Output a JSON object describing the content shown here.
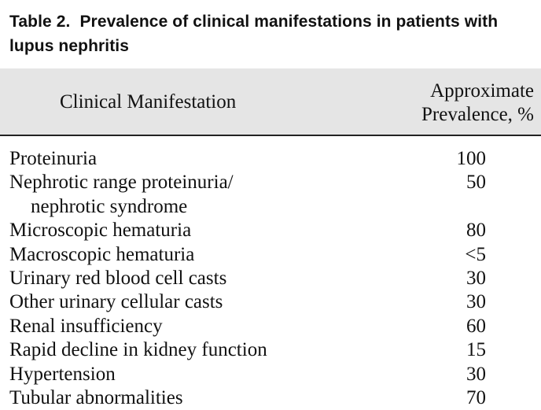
{
  "table": {
    "label": "Table 2.",
    "title": "Prevalence of clinical manifestations in patients with lupus nephritis",
    "col_left": "Clinical Manifestation",
    "col_right_line1": "Approximate",
    "col_right_line2": "Prevalence, %",
    "rows": [
      {
        "name": "Proteinuria",
        "value": "100"
      },
      {
        "name": "Nephrotic range proteinuria/",
        "name_cont": "nephrotic syndrome",
        "value": "50"
      },
      {
        "name": "Microscopic hematuria",
        "value": "80"
      },
      {
        "name": "Macroscopic hematuria",
        "value": "<5"
      },
      {
        "name": "Urinary red blood cell casts",
        "value": "30"
      },
      {
        "name": "Other urinary cellular casts",
        "value": "30"
      },
      {
        "name": "Renal insufficiency",
        "value": "60"
      },
      {
        "name": "Rapid decline in kidney function",
        "value": "15"
      },
      {
        "name": "Hypertension",
        "value": "30"
      },
      {
        "name": "Tubular abnormalities",
        "value": "70"
      }
    ]
  }
}
